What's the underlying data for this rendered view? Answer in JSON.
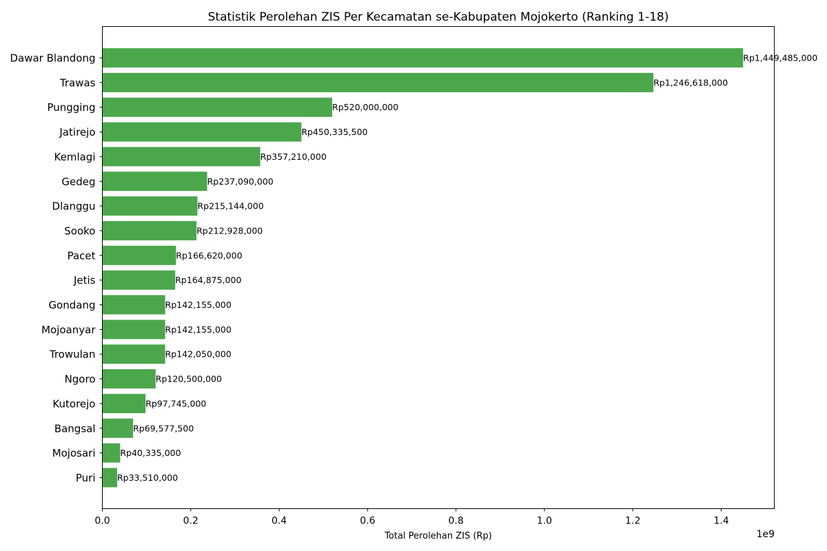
{
  "chart_data": {
    "type": "bar",
    "orientation": "horizontal",
    "title": "Statistik Perolehan ZIS Per Kecamatan se-Kabupaten Mojokerto (Ranking 1-18)",
    "xlabel": "Total Perolehan ZIS (Rp)",
    "ylabel": "",
    "x_scale_note": "1e9",
    "xlim": [
      0,
      1.52
    ],
    "xticks": [
      "0.0",
      "0.2",
      "0.4",
      "0.6",
      "0.8",
      "1.0",
      "1.2",
      "1.4"
    ],
    "grid": false,
    "bar_color": "#4ca64c",
    "categories": [
      "Dawar Blandong",
      "Trawas",
      "Pungging",
      "Jatirejo",
      "Kemlagi",
      "Gedeg",
      "Dlanggu",
      "Sooko",
      "Pacet",
      "Jetis",
      "Gondang",
      "Mojoanyar",
      "Trowulan",
      "Ngoro",
      "Kutorejo",
      "Bangsal",
      "Mojosari",
      "Puri"
    ],
    "values": [
      1449485000,
      1246618000,
      520000000,
      450335500,
      357210000,
      237090000,
      215144000,
      212928000,
      166620000,
      164875000,
      142155000,
      142155000,
      142050000,
      120500000,
      97745000,
      69577500,
      40335000,
      33510000
    ],
    "value_labels": [
      "Rp1,449,485,000",
      "Rp1,246,618,000",
      "Rp520,000,000",
      "Rp450,335,500",
      "Rp357,210,000",
      "Rp237,090,000",
      "Rp215,144,000",
      "Rp212,928,000",
      "Rp166,620,000",
      "Rp164,875,000",
      "Rp142,155,000",
      "Rp142,155,000",
      "Rp142,050,000",
      "Rp120,500,000",
      "Rp97,745,000",
      "Rp69,577,500",
      "Rp40,335,000",
      "Rp33,510,000"
    ]
  }
}
